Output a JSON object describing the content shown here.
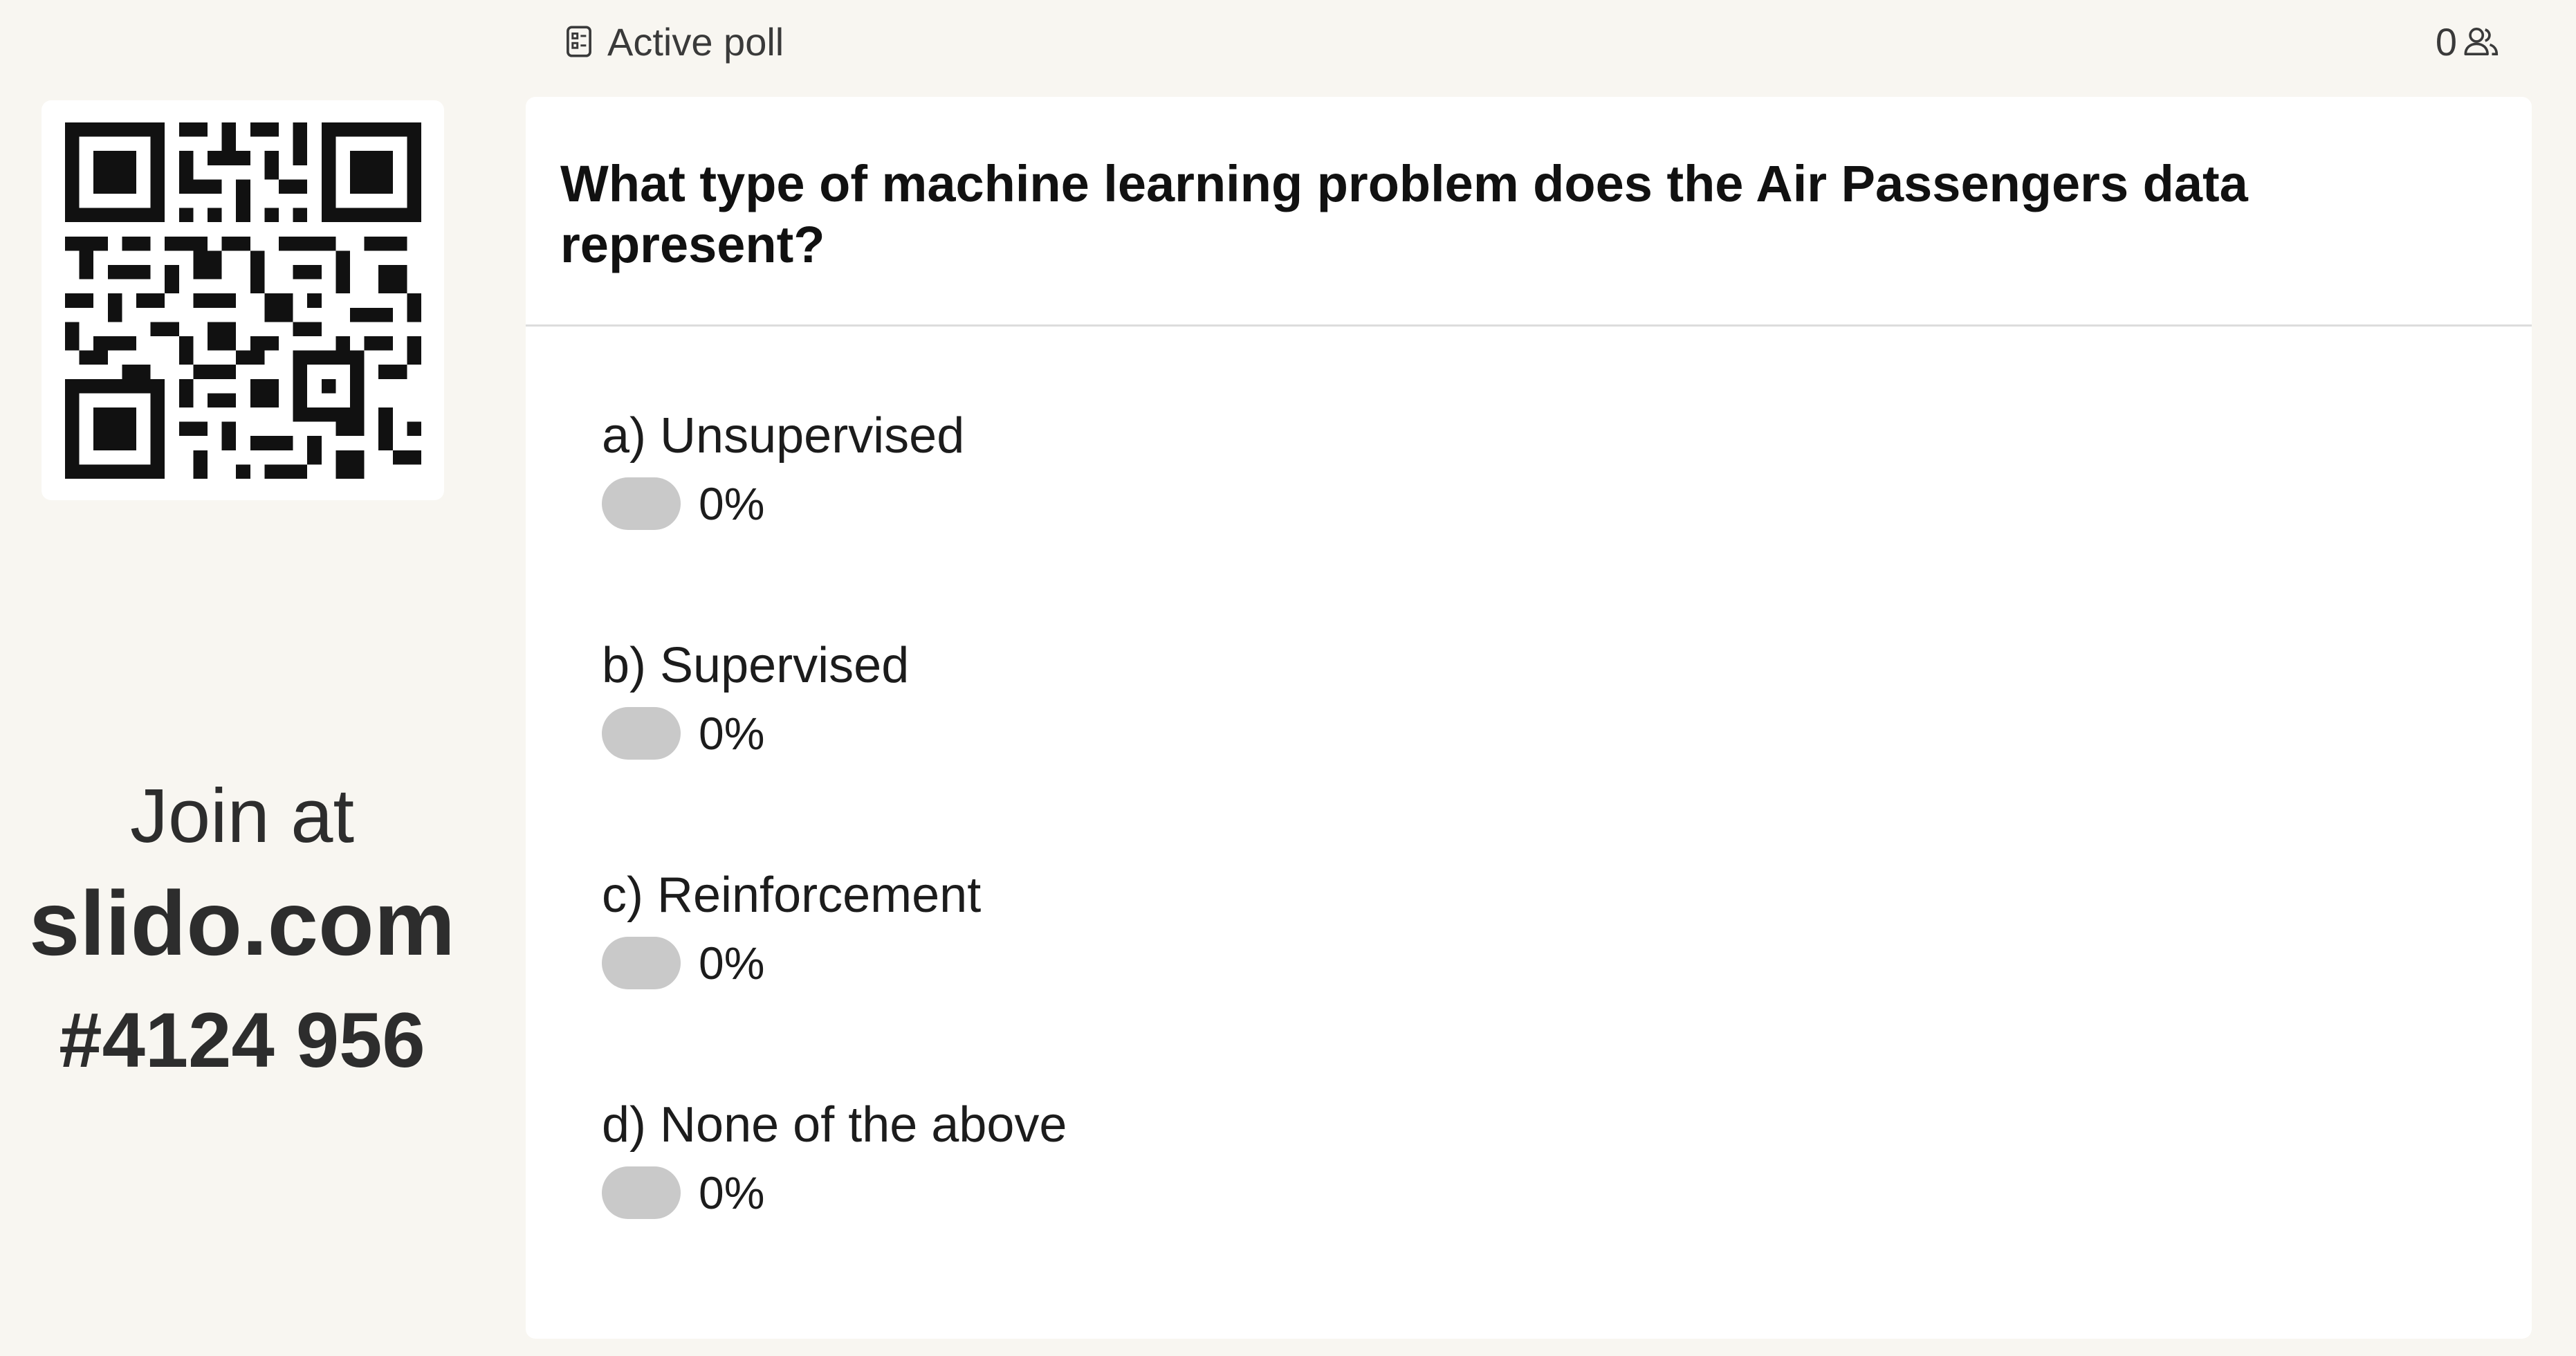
{
  "header": {
    "title": "Active poll",
    "participants": "0",
    "title_icon": "poll-icon",
    "participants_icon": "people-icon"
  },
  "join": {
    "label": "Join at",
    "site": "slido.com",
    "code": "#4124 956"
  },
  "poll": {
    "question": "What type of machine learning problem does the Air Passengers data represent?",
    "options": [
      {
        "label": "a) Unsupervised",
        "percent": "0%",
        "fraction": 0
      },
      {
        "label": "b) Supervised",
        "percent": "0%",
        "fraction": 0
      },
      {
        "label": "c) Reinforcement",
        "percent": "0%",
        "fraction": 0
      },
      {
        "label": "d) None of the above",
        "percent": "0%",
        "fraction": 0
      }
    ]
  }
}
